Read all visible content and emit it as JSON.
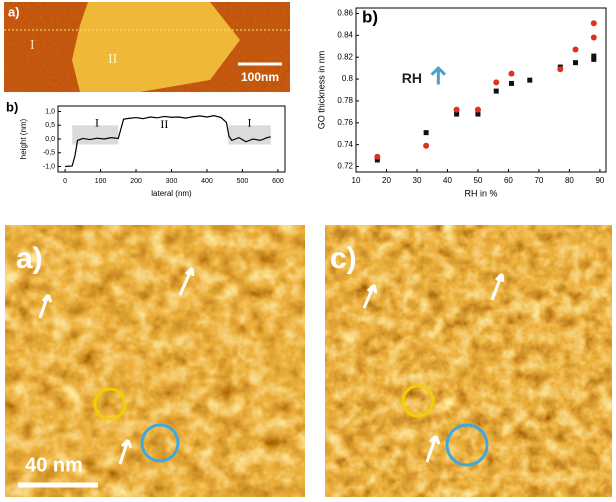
{
  "chart_data": [
    {
      "type": "line",
      "panel_label": "b)",
      "xlabel": "lateral (nm)",
      "ylabel": "height (nm)",
      "annotations": [
        "I",
        "II",
        "I"
      ],
      "x": [
        0,
        20,
        28,
        35,
        50,
        70,
        90,
        110,
        130,
        150,
        158,
        165,
        180,
        200,
        220,
        240,
        260,
        280,
        300,
        320,
        340,
        360,
        380,
        400,
        420,
        440,
        455,
        462,
        470,
        490,
        510,
        530,
        550,
        570,
        580
      ],
      "values": [
        -1.0,
        -0.98,
        -0.6,
        -0.05,
        0.02,
        -0.02,
        0.03,
        0.0,
        0.05,
        0.02,
        0.4,
        0.72,
        0.75,
        0.78,
        0.74,
        0.8,
        0.77,
        0.82,
        0.79,
        0.8,
        0.76,
        0.81,
        0.84,
        0.8,
        0.85,
        0.78,
        0.6,
        0.1,
        -0.05,
        0.05,
        -0.1,
        0.0,
        -0.05,
        0.05,
        0.08
      ],
      "color": "#000000",
      "xlim": [
        -20,
        620
      ],
      "xticks": [
        0,
        100,
        200,
        300,
        400,
        500,
        600
      ],
      "ylim": [
        -1.2,
        1.2
      ],
      "yticks": [
        {
          "value": -1.0,
          "label": "-1,0"
        },
        {
          "value": -0.5,
          "label": "-0,5"
        },
        {
          "value": 0.0,
          "label": "0,0"
        },
        {
          "value": 0.5,
          "label": "0,5"
        },
        {
          "value": 1.0,
          "label": "1,0"
        }
      ]
    },
    {
      "type": "scatter",
      "panel_label": "b)",
      "xlabel": "RH in %",
      "ylabel": "GO thickness in nm",
      "annotation": "RH",
      "series": [
        {
          "color": "#111111",
          "marker": "square",
          "x": [
            17,
            33,
            43,
            50,
            56,
            61,
            67,
            77,
            82,
            88,
            88
          ],
          "values": [
            0.726,
            0.751,
            0.768,
            0.768,
            0.789,
            0.796,
            0.799,
            0.811,
            0.815,
            0.818,
            0.821
          ]
        },
        {
          "color": "#e03020",
          "marker": "circle",
          "x": [
            17,
            33,
            43,
            50,
            56,
            61,
            77,
            82,
            88,
            88
          ],
          "values": [
            0.729,
            0.739,
            0.772,
            0.772,
            0.797,
            0.805,
            0.809,
            0.827,
            0.838,
            0.851
          ]
        }
      ],
      "xlim": [
        10,
        92
      ],
      "xticks": [
        10,
        20,
        30,
        40,
        50,
        60,
        70,
        80,
        90
      ],
      "ylim": [
        0.715,
        0.865
      ],
      "yticks": [
        0.72,
        0.74,
        0.76,
        0.78,
        0.8,
        0.82,
        0.84,
        0.86
      ]
    }
  ],
  "images": [
    {
      "panel_label": "a)",
      "region_1": "I",
      "region_2": "II",
      "scale_bar": "100nm"
    },
    {
      "panel_label": "a)",
      "scale_bar": "40 nm"
    },
    {
      "panel_label": "c)"
    }
  ]
}
